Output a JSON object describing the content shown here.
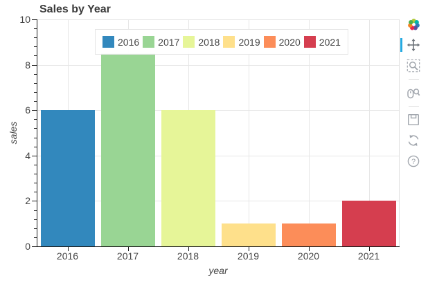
{
  "chart_data": {
    "type": "bar",
    "title": "Sales by Year",
    "categories": [
      "2016",
      "2017",
      "2018",
      "2019",
      "2020",
      "2021"
    ],
    "values": [
      6,
      8.5,
      6,
      1,
      1,
      2
    ],
    "bar_colors": [
      "#3288bd",
      "#99d594",
      "#e6f598",
      "#fee08b",
      "#fc8d59",
      "#d53e4f"
    ],
    "xlabel": "year",
    "ylabel": "sales",
    "ylim": [
      0,
      10
    ],
    "yticks": [
      0,
      2,
      4,
      6,
      8,
      10
    ],
    "minor_tick_step": 0.4,
    "grid": "on",
    "bar_width_fraction": 0.9,
    "legend": {
      "position": "top-center",
      "entries": [
        {
          "label": "2016",
          "color": "#3288bd"
        },
        {
          "label": "2017",
          "color": "#99d594"
        },
        {
          "label": "2018",
          "color": "#e6f598"
        },
        {
          "label": "2019",
          "color": "#fee08b"
        },
        {
          "label": "2020",
          "color": "#fc8d59"
        },
        {
          "label": "2021",
          "color": "#d53e4f"
        }
      ]
    }
  },
  "toolbar": {
    "logo": {
      "icon": "bokeh-logo-icon"
    },
    "tools": [
      {
        "name": "pan",
        "icon": "pan-icon",
        "active": true
      },
      {
        "name": "box-zoom",
        "icon": "box-zoom-icon",
        "active": false
      },
      {
        "name": "divider"
      },
      {
        "name": "wheel-zoom",
        "icon": "wheel-zoom-icon",
        "active": false
      },
      {
        "name": "divider"
      },
      {
        "name": "save",
        "icon": "save-icon",
        "active": false
      },
      {
        "name": "reset",
        "icon": "reset-icon",
        "active": false
      },
      {
        "name": "help",
        "icon": "help-icon",
        "active": false
      }
    ],
    "active_indicator_color": "#26aae1"
  },
  "colors": {
    "grid": "#e6e6e6",
    "axis": "#1a1a1a",
    "text": "#444444",
    "legend_border": "#e5e5e5",
    "icon_inactive": "#a1a6ad",
    "icon_active": "#6e747b"
  }
}
